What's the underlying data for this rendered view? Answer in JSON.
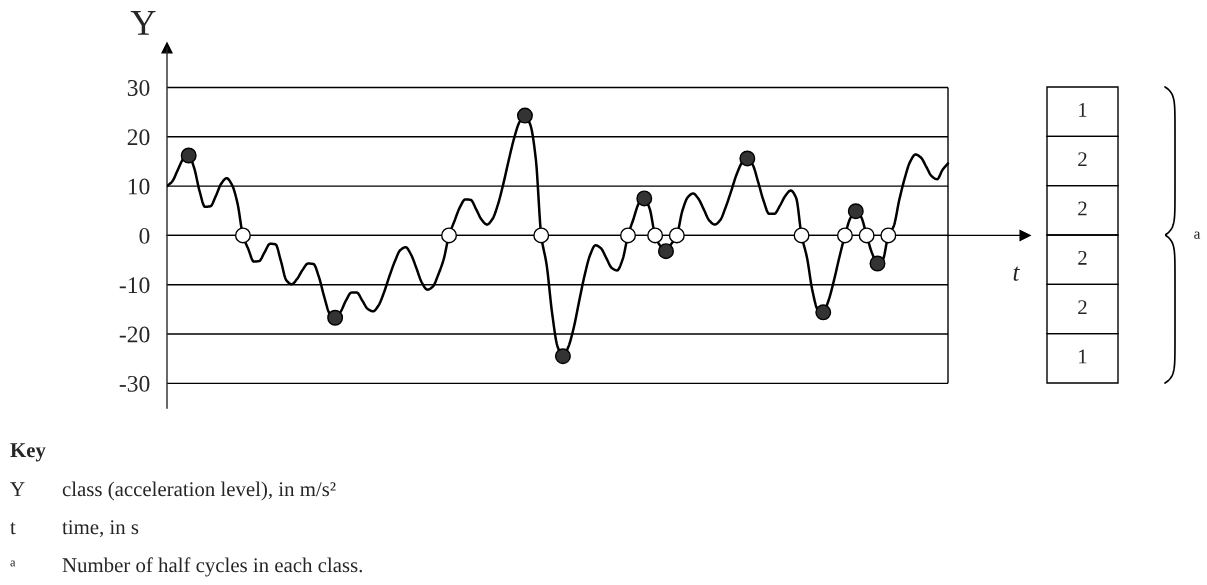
{
  "chart_data": [
    {
      "type": "line",
      "xlabel": "t",
      "ylabel": "Y",
      "categories": [
        null,
        null,
        null,
        null,
        null,
        null,
        null,
        null,
        null,
        null,
        null,
        null,
        null,
        null,
        null,
        null,
        null,
        null,
        null,
        null,
        null,
        null,
        null,
        null,
        null,
        null,
        null,
        null,
        null,
        null,
        null,
        null,
        null,
        null,
        null,
        null,
        null,
        null,
        null,
        null,
        null,
        null,
        null,
        null,
        null,
        null,
        null,
        null,
        null,
        null,
        null,
        null,
        null,
        null,
        null,
        null,
        null,
        null,
        null,
        null,
        null,
        null,
        null,
        null,
        null,
        null,
        null,
        null,
        null,
        null,
        null,
        null,
        null,
        null,
        null,
        null,
        null,
        null,
        null,
        null,
        null,
        null,
        null,
        null,
        null,
        null,
        null,
        null,
        null,
        null,
        null,
        null,
        null,
        null,
        null,
        null,
        null,
        null,
        null,
        null,
        null,
        null,
        null,
        null,
        null,
        null,
        null,
        null,
        null,
        null,
        null,
        null,
        null,
        null,
        null,
        null,
        null,
        null,
        null,
        null,
        null,
        null,
        null,
        null,
        null,
        null,
        null,
        null,
        null,
        null,
        null,
        null,
        null,
        null,
        null,
        null,
        null,
        null,
        null,
        null,
        null,
        null,
        null,
        null,
        null
      ],
      "series": [
        {
          "type": "line",
          "color": "#000000",
          "values": [
            10,
            11.0,
            13.3,
            15.5,
            16.2,
            13.7,
            9.0,
            5.8,
            5.9,
            8.0,
            10.5,
            11.6,
            10.2,
            6.5,
            0,
            -2.8,
            -5.3,
            -5.2,
            -3.4,
            -1.7,
            -1.8,
            -5.2,
            -9.1,
            -9.9,
            -8.8,
            -7.0,
            -5.7,
            -5.8,
            -8.4,
            -12.5,
            -15.9,
            -16.7,
            -15.5,
            -13.2,
            -11.6,
            -11.6,
            -13.2,
            -14.9,
            -15.4,
            -14.2,
            -11.6,
            -8.3,
            -5.3,
            -3.0,
            -2.4,
            -3.9,
            -6.7,
            -9.6,
            -11,
            -10.4,
            -8.0,
            -4.9,
            0,
            2.9,
            5.7,
            7.3,
            7.2,
            5.3,
            3.2,
            2.2,
            3.3,
            6.2,
            10.4,
            15.2,
            19.7,
            23.0,
            24.3,
            22.4,
            15.5,
            0,
            -6.0,
            -15.7,
            -22.5,
            -24.5,
            -22.6,
            -18.7,
            -13.3,
            -8.1,
            -4.0,
            -2.0,
            -2.6,
            -4.6,
            -6.6,
            -7.1,
            -4.9,
            0,
            3.3,
            6.5,
            7.5,
            5.4,
            0,
            -2.2,
            -3.2,
            -1.7,
            0,
            4.9,
            7.7,
            8.5,
            7.4,
            5.2,
            3.0,
            2.2,
            3.1,
            5.7,
            8.9,
            12.3,
            14.7,
            15.6,
            14.3,
            10.8,
            7.0,
            4.4,
            4.4,
            6.0,
            8.0,
            9.1,
            7.6,
            0,
            -4.5,
            -11.2,
            -15.1,
            -15.6,
            -13.1,
            -9.0,
            -4.3,
            0,
            3.5,
            4.9,
            3.7,
            0,
            -3.6,
            -5.7,
            -4.9,
            0,
            1.9,
            7.1,
            11.5,
            14.9,
            16.4,
            15.8,
            13.9,
            12.0,
            11.4,
            13.3,
            14.6
          ]
        },
        {
          "type": "scatter",
          "marker": "circle",
          "color": "#333333",
          "values": [
            null,
            null,
            null,
            null,
            16.2,
            null,
            null,
            null,
            null,
            null,
            null,
            null,
            null,
            null,
            null,
            null,
            null,
            null,
            null,
            null,
            null,
            null,
            null,
            null,
            null,
            null,
            null,
            null,
            null,
            null,
            null,
            -16.7,
            null,
            null,
            null,
            null,
            null,
            null,
            null,
            null,
            null,
            null,
            null,
            null,
            null,
            null,
            null,
            null,
            null,
            null,
            null,
            null,
            null,
            null,
            null,
            null,
            null,
            null,
            null,
            null,
            null,
            null,
            null,
            null,
            null,
            null,
            24.3,
            null,
            null,
            null,
            null,
            null,
            null,
            -24.5,
            null,
            null,
            null,
            null,
            null,
            null,
            null,
            null,
            null,
            null,
            null,
            null,
            null,
            null,
            7.5,
            null,
            null,
            null,
            -3.2,
            null,
            null,
            null,
            null,
            null,
            null,
            null,
            null,
            null,
            null,
            null,
            null,
            null,
            null,
            15.6,
            null,
            null,
            null,
            null,
            null,
            null,
            null,
            null,
            null,
            null,
            null,
            null,
            null,
            -15.6,
            null,
            null,
            null,
            null,
            null,
            4.9,
            null,
            null,
            null,
            -5.7,
            null,
            null,
            null,
            null,
            null,
            null,
            null,
            null,
            null,
            null,
            null,
            null,
            null
          ]
        },
        {
          "type": "scatter",
          "marker": "circle",
          "color": "#ffffff",
          "values": [
            null,
            null,
            null,
            null,
            null,
            null,
            null,
            null,
            null,
            null,
            null,
            null,
            null,
            null,
            0,
            null,
            null,
            null,
            null,
            null,
            null,
            null,
            null,
            null,
            null,
            null,
            null,
            null,
            null,
            null,
            null,
            null,
            null,
            null,
            null,
            null,
            null,
            null,
            null,
            null,
            null,
            null,
            null,
            null,
            null,
            null,
            null,
            null,
            null,
            null,
            null,
            null,
            0,
            null,
            null,
            null,
            null,
            null,
            null,
            null,
            null,
            null,
            null,
            null,
            null,
            null,
            null,
            null,
            null,
            0,
            null,
            null,
            null,
            null,
            null,
            null,
            null,
            null,
            null,
            null,
            null,
            null,
            null,
            null,
            null,
            0,
            null,
            null,
            null,
            null,
            0,
            null,
            null,
            null,
            0,
            null,
            null,
            null,
            null,
            null,
            null,
            null,
            null,
            null,
            null,
            null,
            null,
            null,
            null,
            null,
            null,
            null,
            null,
            null,
            null,
            null,
            null,
            0,
            null,
            null,
            null,
            null,
            null,
            null,
            null,
            0,
            null,
            null,
            null,
            0,
            null,
            null,
            null,
            0,
            null,
            null,
            null,
            null,
            null,
            null,
            null,
            null,
            null,
            null,
            null
          ]
        }
      ],
      "ylim": [
        -35,
        38
      ],
      "yticks": [
        -30,
        -20,
        -10,
        0,
        10,
        20,
        30
      ],
      "grid": "y",
      "legend": false,
      "tick_labels": "y",
      "annotations": [
        "Key",
        "Y",
        "class (acceleration level), in m/s²",
        "t",
        "time, in s",
        "ᵃ",
        "Number of half cycles in each class."
      ]
    },
    {
      "type": "other",
      "annotations": [
        "1",
        "2",
        "2",
        "2",
        "2",
        "1",
        "a"
      ]
    }
  ]
}
